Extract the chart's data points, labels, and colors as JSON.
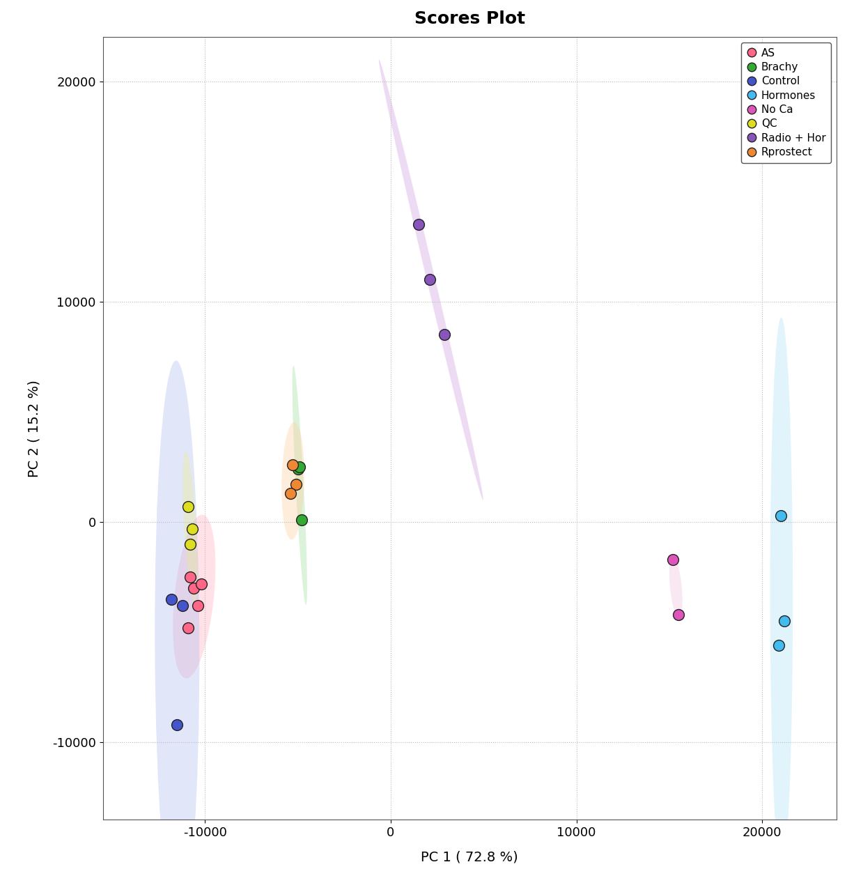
{
  "title": "Scores Plot",
  "xlabel": "PC 1 ( 72.8 %)",
  "ylabel": "PC 2 ( 15.2 %)",
  "xlim": [
    -15500,
    24000
  ],
  "ylim": [
    -13500,
    22000
  ],
  "xticks": [
    -10000,
    0,
    10000,
    20000
  ],
  "yticks": [
    -10000,
    0,
    10000,
    20000
  ],
  "groups": {
    "AS": {
      "color": "#FF6688",
      "ellipse_color": "#FFAABC",
      "points": [
        [
          -10800,
          -2500
        ],
        [
          -10600,
          -3000
        ],
        [
          -10400,
          -3800
        ],
        [
          -10200,
          -2800
        ],
        [
          -10900,
          -4800
        ]
      ]
    },
    "Brachy": {
      "color": "#33AA33",
      "ellipse_color": "#99DD99",
      "points": [
        [
          -5000,
          2400
        ],
        [
          -4900,
          2500
        ],
        [
          -4800,
          100
        ]
      ]
    },
    "Control": {
      "color": "#4455CC",
      "ellipse_color": "#AABBEE",
      "points": [
        [
          -11800,
          -3500
        ],
        [
          -11200,
          -3800
        ],
        [
          -11500,
          -9200
        ]
      ]
    },
    "Hormones": {
      "color": "#44BBEE",
      "ellipse_color": "#AADDF5",
      "points": [
        [
          21000,
          300
        ],
        [
          21200,
          -4500
        ],
        [
          20900,
          -5600
        ]
      ]
    },
    "No Ca": {
      "color": "#DD55BB",
      "ellipse_color": "#EEBBD9",
      "points": [
        [
          15200,
          -1700
        ],
        [
          15500,
          -4200
        ]
      ]
    },
    "QC": {
      "color": "#DDDD22",
      "ellipse_color": "#EEEE88",
      "points": [
        [
          -10900,
          700
        ],
        [
          -10700,
          -300
        ],
        [
          -10800,
          -1000
        ]
      ]
    },
    "Radio + Hor": {
      "color": "#8855BB",
      "ellipse_color": "#CC99DD",
      "points": [
        [
          1500,
          13500
        ],
        [
          2100,
          11000
        ],
        [
          2900,
          8500
        ]
      ]
    },
    "Rprostect": {
      "color": "#EE8833",
      "ellipse_color": "#FFCC99",
      "points": [
        [
          -5300,
          2600
        ],
        [
          -5100,
          1700
        ],
        [
          -5400,
          1300
        ]
      ]
    }
  },
  "background_color": "#FFFFFF",
  "grid_color": "#BBBBBB",
  "title_fontsize": 18,
  "label_fontsize": 14,
  "tick_fontsize": 13,
  "marker_size": 130,
  "marker_linewidth": 1.0
}
